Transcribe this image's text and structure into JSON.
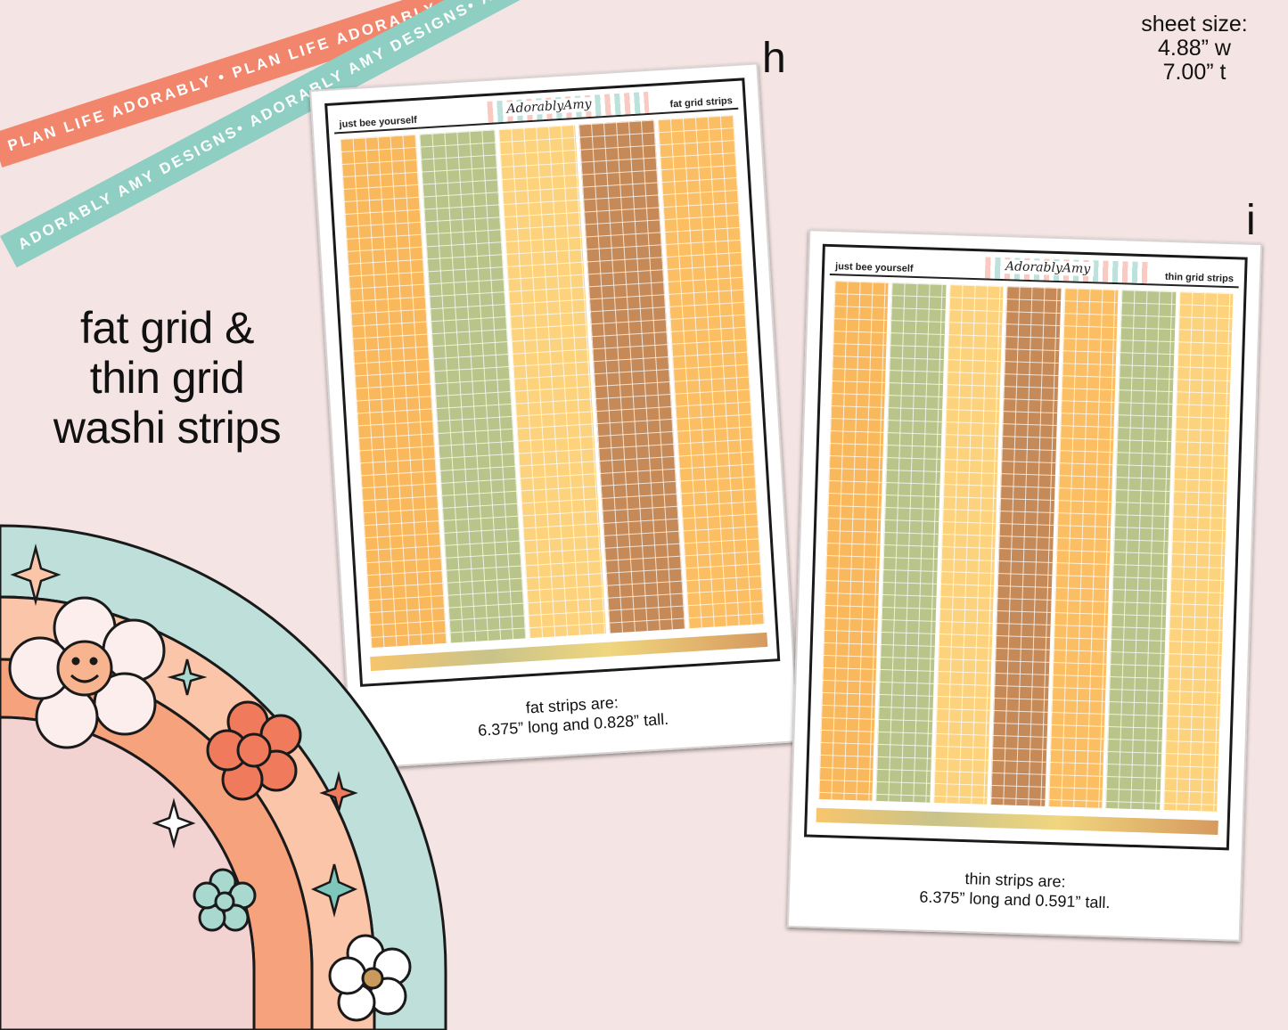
{
  "ribbons": {
    "coral_text": "PLAN LIFE ADORABLY • PLAN LIFE ADORABLY • PLAN LIFE ADORABLY •",
    "teal_text": "ADORABLY AMY DESIGNS• ADORABLY AMY DESIGNS• ADORABLY AMY DESIGNS•",
    "coral_color": "#f2866d",
    "teal_color": "#8fcfc3"
  },
  "headline": {
    "line1": "fat grid &",
    "line2": "thin grid",
    "line3": "washi strips"
  },
  "sheet_size": {
    "label": "sheet size:",
    "width": "4.88” w",
    "height": "7.00” t"
  },
  "sheet_h": {
    "letter": "h",
    "header_left": "just bee yourself",
    "header_logo": "AdorablyAmy",
    "header_right": "fat grid strips",
    "caption_line1": "fat strips are:",
    "caption_line2": "6.375” long and 0.828” tall.",
    "strip_colors": [
      "#f9b85c",
      "#b8c48a",
      "#fdd27c",
      "#c58a58",
      "#fbbe62"
    ]
  },
  "sheet_i": {
    "letter": "i",
    "header_left": "just bee yourself",
    "header_logo": "AdorablyAmy",
    "header_right": "thin grid strips",
    "caption_line1": "thin strips are:",
    "caption_line2": "6.375” long and 0.591” tall.",
    "strip_colors": [
      "#f9b85c",
      "#b8c48a",
      "#fdd27c",
      "#c58a58",
      "#fbbe62",
      "#b8c48a",
      "#fdd27c"
    ]
  }
}
